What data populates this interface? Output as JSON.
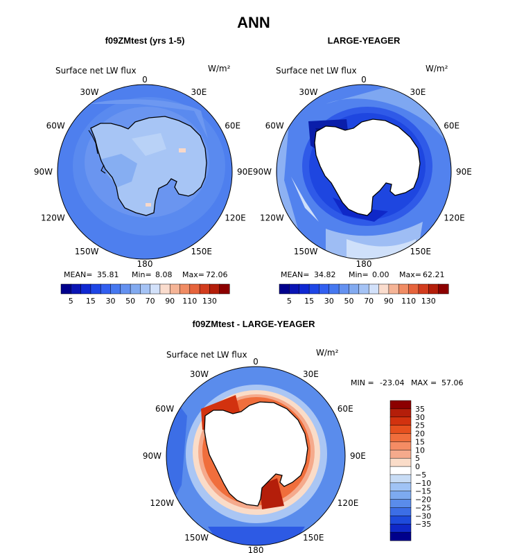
{
  "page_title": "ANN",
  "chart_data": [
    {
      "type": "heatmap",
      "title": "f09ZMtest (yrs 1-5)",
      "field_label": "Surface net LW flux",
      "units": "W/m²",
      "lon_labels": [
        "0",
        "30E",
        "60E",
        "90E",
        "120E",
        "150E",
        "180",
        "150W",
        "120W",
        "90W",
        "60W",
        "30W"
      ],
      "mean_label": "MEAN=",
      "mean": "35.81",
      "min_label": "Min=",
      "min": "8.08",
      "max_label": "Max=",
      "max": "72.06",
      "levels": [
        5,
        10,
        15,
        20,
        25,
        30,
        40,
        50,
        60,
        70,
        80,
        90,
        100,
        110,
        120,
        130
      ],
      "level_labels": [
        "5",
        "15",
        "30",
        "50",
        "70",
        "90",
        "110",
        "130"
      ],
      "colors": [
        "#00008c",
        "#0a14b4",
        "#0f28d2",
        "#1e46e6",
        "#325ff0",
        "#4678f0",
        "#6491f0",
        "#82aaf0",
        "#a5c3f5",
        "#d2e1fa",
        "#fadccd",
        "#f5b496",
        "#f08c64",
        "#e6643c",
        "#d23c1e",
        "#b41e0a",
        "#8c0000"
      ],
      "dominant_value": 30
    },
    {
      "type": "heatmap",
      "title": "LARGE-YEAGER",
      "field_label": "Surface net LW flux",
      "units": "W/m²",
      "lon_labels": [
        "0",
        "30E",
        "60E",
        "90E",
        "120E",
        "150E",
        "180",
        "150W",
        "120W",
        "90W",
        "60W",
        "30W"
      ],
      "mean_label": "MEAN=",
      "mean": "34.82",
      "min_label": "Min=",
      "min": "0.00",
      "max_label": "Max=",
      "max": "62.21",
      "levels": [
        5,
        10,
        15,
        20,
        25,
        30,
        40,
        50,
        60,
        70,
        80,
        90,
        100,
        110,
        120,
        130
      ],
      "level_labels": [
        "5",
        "15",
        "30",
        "50",
        "70",
        "90",
        "110",
        "130"
      ],
      "colors": [
        "#00008c",
        "#0a14b4",
        "#0f28d2",
        "#1e46e6",
        "#325ff0",
        "#4678f0",
        "#6491f0",
        "#82aaf0",
        "#a5c3f5",
        "#d2e1fa",
        "#fadccd",
        "#f5b496",
        "#f08c64",
        "#e6643c",
        "#d23c1e",
        "#b41e0a",
        "#8c0000"
      ],
      "dominant_value": 30
    },
    {
      "type": "heatmap",
      "title": "f09ZMtest - LARGE-YEAGER",
      "field_label": "Surface net LW flux",
      "units": "W/m²",
      "lon_labels": [
        "0",
        "30E",
        "60E",
        "90E",
        "120E",
        "150E",
        "180",
        "150W",
        "120W",
        "90W",
        "60W",
        "30W"
      ],
      "min_label": "MIN =",
      "min": "-23.04",
      "max_label": "MAX =",
      "max": "57.06",
      "levels": [
        35,
        30,
        25,
        20,
        15,
        10,
        5,
        0,
        -5,
        -10,
        -15,
        -20,
        -25,
        -30,
        -35
      ],
      "level_labels": [
        "35",
        "30",
        "25",
        "20",
        "15",
        "10",
        "5",
        "0",
        "−5",
        "−10",
        "−15",
        "−20",
        "−25",
        "−30",
        "−35"
      ],
      "colors": [
        "#8c0000",
        "#b41e0a",
        "#d2320f",
        "#e6501e",
        "#f06e3c",
        "#f58c64",
        "#f5aa8c",
        "#fadcc8",
        "#ffffff",
        "#c8dcf5",
        "#a0c3f5",
        "#7daaf0",
        "#5a8ceb",
        "#3c6ee6",
        "#1e4bdc",
        "#0f28c8",
        "#00008c"
      ]
    }
  ]
}
